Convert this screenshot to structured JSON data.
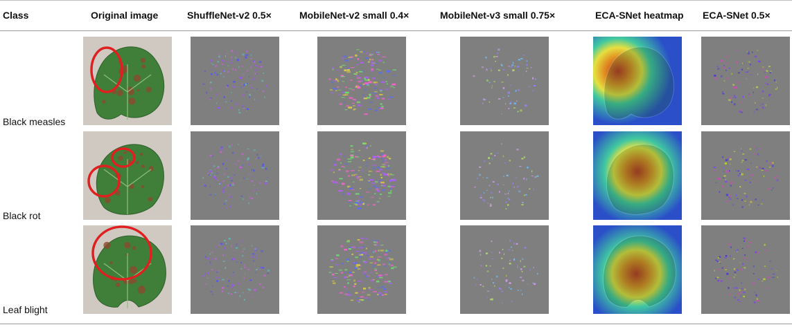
{
  "table": {
    "headers": [
      "Class",
      "Original image",
      "ShuffleNet-v2 0.5×",
      "MobileNet-v2 small 0.4×",
      "MobileNet-v3 small 0.75×",
      "ECA-SNet heatmap",
      "ECA-SNet 0.5×"
    ],
    "rows": [
      {
        "label": "Black measles"
      },
      {
        "label": "Black rot"
      },
      {
        "label": "Leaf blight"
      }
    ]
  },
  "colors": {
    "leaf": "#3f7f3a",
    "lesion": "#8b4a2e",
    "circle": "#e02020",
    "gray": "#7f7f7f",
    "heat_hot": "#c0301e",
    "heat_cold": "#2a4fc8"
  }
}
